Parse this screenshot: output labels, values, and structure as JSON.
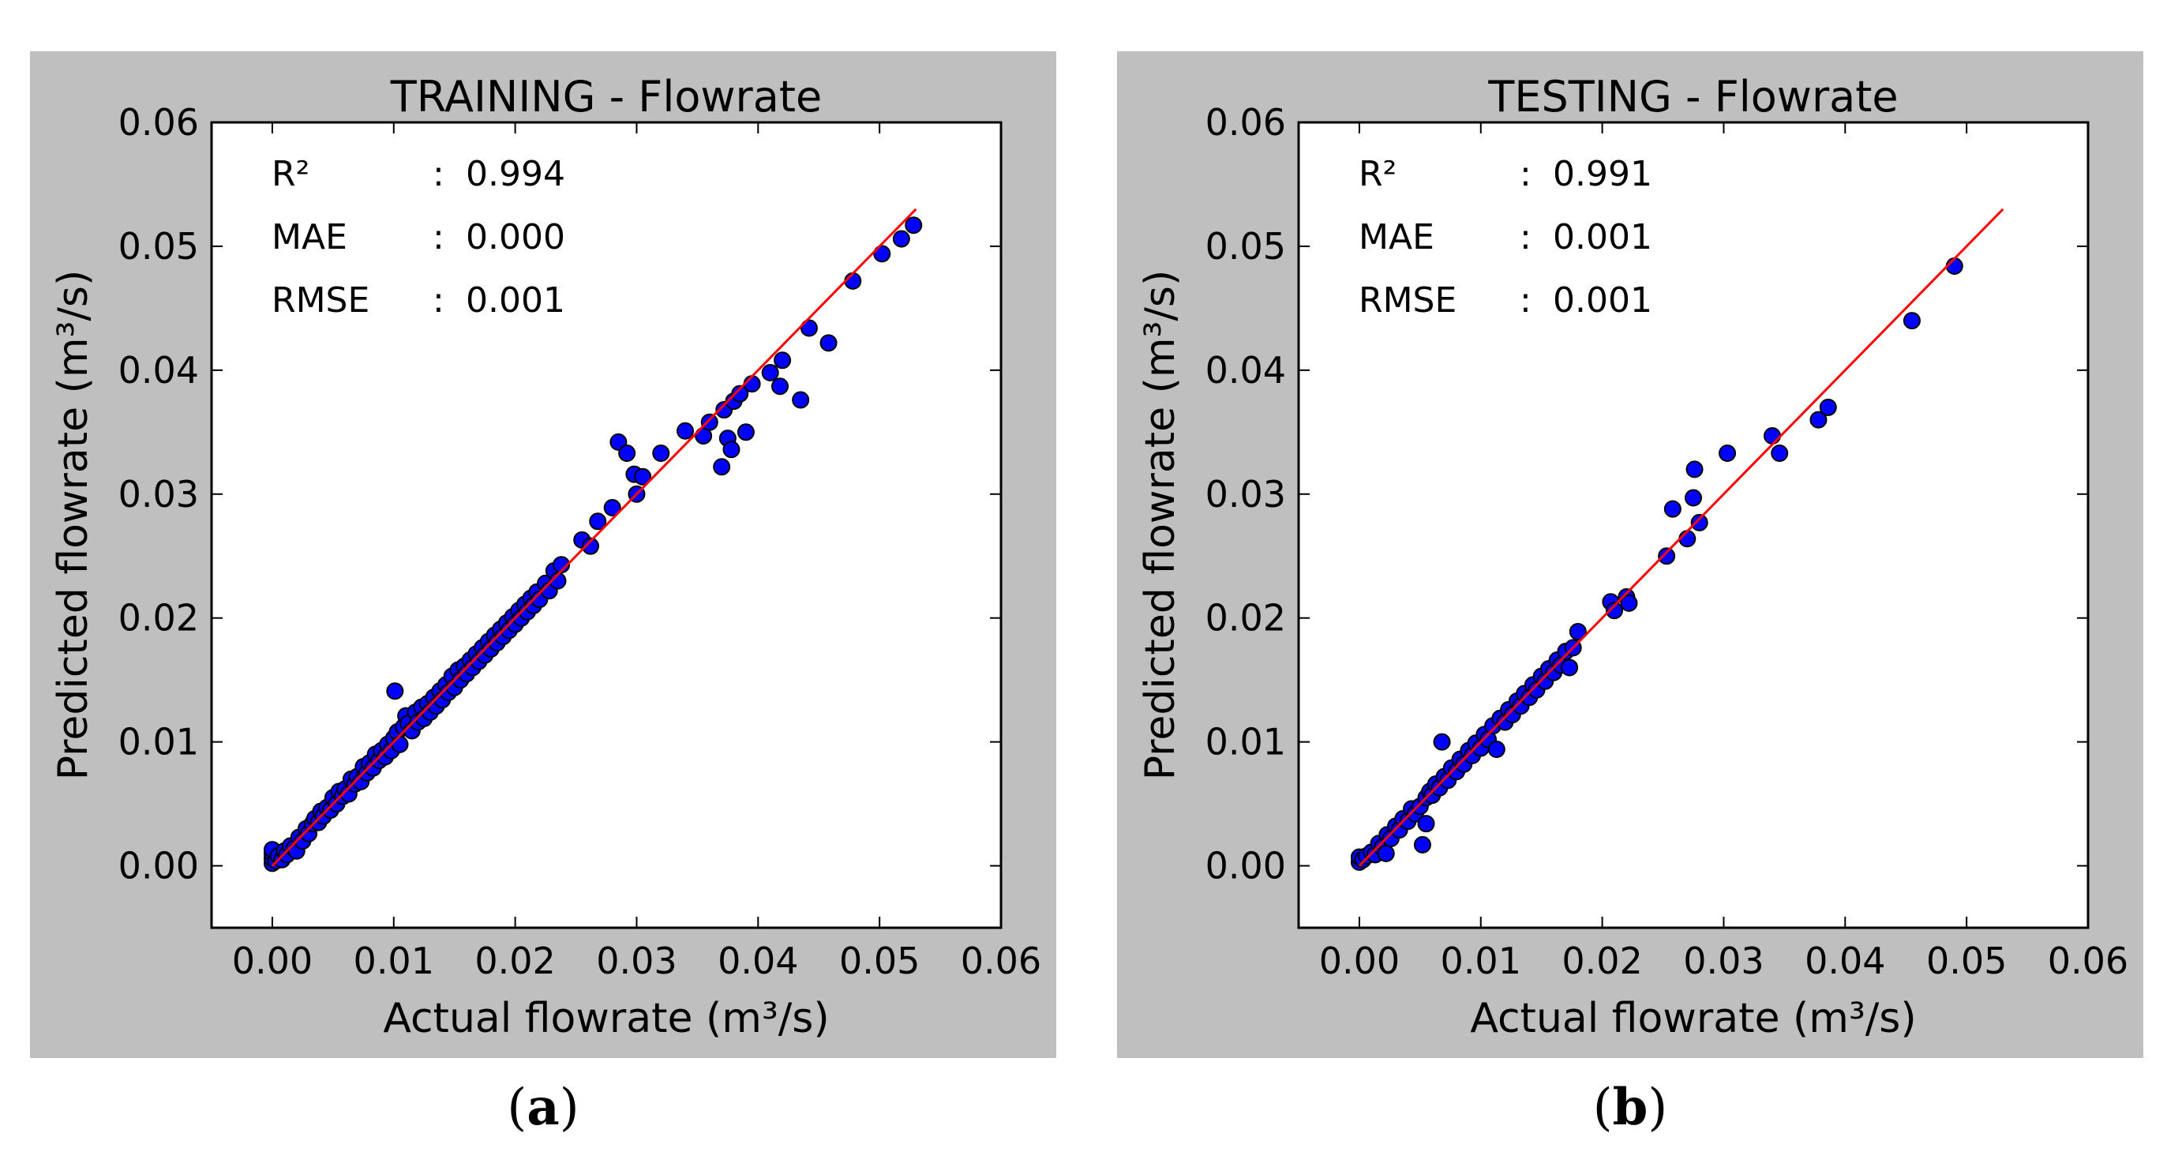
{
  "chart_data": [
    {
      "type": "scatter",
      "title": "TRAINING - Flowrate",
      "xlabel": "Actual flowrate (m³/s)",
      "ylabel": "Predicted flowrate (m³/s)",
      "xlim": [
        -0.005,
        0.06
      ],
      "ylim": [
        -0.005,
        0.06
      ],
      "xticks": [
        "0.00",
        "0.01",
        "0.02",
        "0.03",
        "0.04",
        "0.05",
        "0.06"
      ],
      "yticks": [
        "0.00",
        "0.01",
        "0.02",
        "0.03",
        "0.04",
        "0.05",
        "0.06"
      ],
      "tick_values": [
        0,
        0.01,
        0.02,
        0.03,
        0.04,
        0.05,
        0.06
      ],
      "grid": false,
      "point_color": "#0000ff",
      "line_color": "#ff0000",
      "reference_line": {
        "x": [
          0,
          0.053
        ],
        "y": [
          0,
          0.053
        ]
      },
      "stats": [
        {
          "label": "R²",
          "sep": ":",
          "value": "0.994"
        },
        {
          "label": "MAE",
          "sep": ":",
          "value": "0.000"
        },
        {
          "label": "RMSE",
          "sep": ":",
          "value": "0.001"
        }
      ],
      "series": [
        {
          "name": "training",
          "points": [
            [
              0.0,
              0.0002
            ],
            [
              0.0,
              0.0006
            ],
            [
              0.0,
              0.001
            ],
            [
              0.0,
              0.0013
            ],
            [
              0.0003,
              0.0004
            ],
            [
              0.0005,
              0.0008
            ],
            [
              0.0008,
              0.0005
            ],
            [
              0.001,
              0.0012
            ],
            [
              0.0012,
              0.0009
            ],
            [
              0.0015,
              0.0016
            ],
            [
              0.0018,
              0.0014
            ],
            [
              0.002,
              0.0012
            ],
            [
              0.0022,
              0.0023
            ],
            [
              0.0025,
              0.002
            ],
            [
              0.0028,
              0.003
            ],
            [
              0.003,
              0.0026
            ],
            [
              0.0033,
              0.0034
            ],
            [
              0.0035,
              0.0038
            ],
            [
              0.0038,
              0.0035
            ],
            [
              0.004,
              0.0044
            ],
            [
              0.0042,
              0.004
            ],
            [
              0.0045,
              0.0047
            ],
            [
              0.0048,
              0.0045
            ],
            [
              0.005,
              0.0055
            ],
            [
              0.0053,
              0.005
            ],
            [
              0.0055,
              0.006
            ],
            [
              0.0058,
              0.0056
            ],
            [
              0.006,
              0.0062
            ],
            [
              0.0063,
              0.0058
            ],
            [
              0.0065,
              0.007
            ],
            [
              0.0068,
              0.0066
            ],
            [
              0.007,
              0.0072
            ],
            [
              0.0073,
              0.0068
            ],
            [
              0.0075,
              0.008
            ],
            [
              0.0078,
              0.0075
            ],
            [
              0.008,
              0.0083
            ],
            [
              0.0083,
              0.0079
            ],
            [
              0.0085,
              0.009
            ],
            [
              0.0088,
              0.0085
            ],
            [
              0.009,
              0.0093
            ],
            [
              0.0093,
              0.0088
            ],
            [
              0.0095,
              0.0098
            ],
            [
              0.0098,
              0.0093
            ],
            [
              0.01,
              0.0103
            ],
            [
              0.0101,
              0.0141
            ],
            [
              0.0103,
              0.0108
            ],
            [
              0.0105,
              0.0098
            ],
            [
              0.0108,
              0.0112
            ],
            [
              0.011,
              0.0121
            ],
            [
              0.0112,
              0.0115
            ],
            [
              0.0115,
              0.0109
            ],
            [
              0.0118,
              0.0124
            ],
            [
              0.012,
              0.0116
            ],
            [
              0.0123,
              0.0128
            ],
            [
              0.0125,
              0.0119
            ],
            [
              0.0128,
              0.0131
            ],
            [
              0.013,
              0.0124
            ],
            [
              0.0133,
              0.0136
            ],
            [
              0.0135,
              0.0129
            ],
            [
              0.0138,
              0.0141
            ],
            [
              0.014,
              0.0134
            ],
            [
              0.0143,
              0.0146
            ],
            [
              0.0145,
              0.014
            ],
            [
              0.0148,
              0.0153
            ],
            [
              0.015,
              0.0144
            ],
            [
              0.0153,
              0.0158
            ],
            [
              0.0155,
              0.015
            ],
            [
              0.0158,
              0.0161
            ],
            [
              0.016,
              0.0155
            ],
            [
              0.0163,
              0.0166
            ],
            [
              0.0165,
              0.016
            ],
            [
              0.0168,
              0.0171
            ],
            [
              0.017,
              0.0165
            ],
            [
              0.0173,
              0.0176
            ],
            [
              0.0175,
              0.017
            ],
            [
              0.0178,
              0.0181
            ],
            [
              0.018,
              0.0175
            ],
            [
              0.0183,
              0.0186
            ],
            [
              0.0185,
              0.018
            ],
            [
              0.0188,
              0.0191
            ],
            [
              0.019,
              0.0185
            ],
            [
              0.0193,
              0.0196
            ],
            [
              0.0195,
              0.019
            ],
            [
              0.0198,
              0.0201
            ],
            [
              0.02,
              0.0195
            ],
            [
              0.0203,
              0.0206
            ],
            [
              0.0205,
              0.02
            ],
            [
              0.0208,
              0.0211
            ],
            [
              0.021,
              0.0205
            ],
            [
              0.0213,
              0.0216
            ],
            [
              0.0215,
              0.021
            ],
            [
              0.0218,
              0.0221
            ],
            [
              0.022,
              0.0215
            ],
            [
              0.0225,
              0.0228
            ],
            [
              0.0228,
              0.0222
            ],
            [
              0.0232,
              0.0238
            ],
            [
              0.0235,
              0.023
            ],
            [
              0.0238,
              0.0243
            ],
            [
              0.0255,
              0.0263
            ],
            [
              0.0262,
              0.0258
            ],
            [
              0.0268,
              0.0278
            ],
            [
              0.028,
              0.0289
            ],
            [
              0.0285,
              0.0342
            ],
            [
              0.0292,
              0.0333
            ],
            [
              0.0298,
              0.0316
            ],
            [
              0.03,
              0.03
            ],
            [
              0.0305,
              0.0314
            ],
            [
              0.032,
              0.0333
            ],
            [
              0.034,
              0.0351
            ],
            [
              0.0355,
              0.0347
            ],
            [
              0.036,
              0.0358
            ],
            [
              0.037,
              0.0322
            ],
            [
              0.0372,
              0.0368
            ],
            [
              0.0375,
              0.0345
            ],
            [
              0.0378,
              0.0336
            ],
            [
              0.038,
              0.0375
            ],
            [
              0.0385,
              0.0381
            ],
            [
              0.039,
              0.035
            ],
            [
              0.0395,
              0.0389
            ],
            [
              0.041,
              0.0398
            ],
            [
              0.0418,
              0.0387
            ],
            [
              0.042,
              0.0408
            ],
            [
              0.0435,
              0.0376
            ],
            [
              0.0442,
              0.0434
            ],
            [
              0.0458,
              0.0422
            ],
            [
              0.0478,
              0.0472
            ],
            [
              0.0502,
              0.0494
            ],
            [
              0.0518,
              0.0506
            ],
            [
              0.0528,
              0.0517
            ]
          ]
        }
      ]
    },
    {
      "type": "scatter",
      "title": "TESTING - Flowrate",
      "xlabel": "Actual flowrate (m³/s)",
      "ylabel": "Predicted flowrate (m³/s)",
      "xlim": [
        -0.005,
        0.06
      ],
      "ylim": [
        -0.005,
        0.06
      ],
      "xticks": [
        "0.00",
        "0.01",
        "0.02",
        "0.03",
        "0.04",
        "0.05",
        "0.06"
      ],
      "yticks": [
        "0.00",
        "0.01",
        "0.02",
        "0.03",
        "0.04",
        "0.05",
        "0.06"
      ],
      "tick_values": [
        0,
        0.01,
        0.02,
        0.03,
        0.04,
        0.05,
        0.06
      ],
      "grid": false,
      "point_color": "#0000ff",
      "line_color": "#ff0000",
      "reference_line": {
        "x": [
          0,
          0.053
        ],
        "y": [
          0,
          0.053
        ]
      },
      "stats": [
        {
          "label": "R²",
          "sep": ":",
          "value": "0.991"
        },
        {
          "label": "MAE",
          "sep": ":",
          "value": "0.001"
        },
        {
          "label": "RMSE",
          "sep": ":",
          "value": "0.001"
        }
      ],
      "series": [
        {
          "name": "testing",
          "points": [
            [
              0.0,
              0.0003
            ],
            [
              0.0,
              0.0007
            ],
            [
              0.0003,
              0.0005
            ],
            [
              0.0006,
              0.0008
            ],
            [
              0.001,
              0.0011
            ],
            [
              0.0013,
              0.0009
            ],
            [
              0.0016,
              0.0018
            ],
            [
              0.0019,
              0.0015
            ],
            [
              0.0022,
              0.001
            ],
            [
              0.0023,
              0.0025
            ],
            [
              0.0026,
              0.0022
            ],
            [
              0.003,
              0.0032
            ],
            [
              0.0033,
              0.0029
            ],
            [
              0.0036,
              0.0038
            ],
            [
              0.004,
              0.0036
            ],
            [
              0.0043,
              0.0046
            ],
            [
              0.0046,
              0.0042
            ],
            [
              0.005,
              0.0048
            ],
            [
              0.0052,
              0.0017
            ],
            [
              0.0055,
              0.0034
            ],
            [
              0.0055,
              0.0055
            ],
            [
              0.0058,
              0.006
            ],
            [
              0.006,
              0.0057
            ],
            [
              0.0063,
              0.0066
            ],
            [
              0.0066,
              0.0063
            ],
            [
              0.0068,
              0.01
            ],
            [
              0.007,
              0.0072
            ],
            [
              0.0073,
              0.0069
            ],
            [
              0.0076,
              0.0079
            ],
            [
              0.008,
              0.0076
            ],
            [
              0.0083,
              0.0086
            ],
            [
              0.0086,
              0.0082
            ],
            [
              0.009,
              0.0093
            ],
            [
              0.0093,
              0.0089
            ],
            [
              0.0096,
              0.0099
            ],
            [
              0.01,
              0.0095
            ],
            [
              0.0103,
              0.0106
            ],
            [
              0.0106,
              0.0102
            ],
            [
              0.011,
              0.0113
            ],
            [
              0.0113,
              0.0094
            ],
            [
              0.0116,
              0.0119
            ],
            [
              0.012,
              0.0116
            ],
            [
              0.0123,
              0.0126
            ],
            [
              0.0126,
              0.0122
            ],
            [
              0.013,
              0.0133
            ],
            [
              0.0133,
              0.0129
            ],
            [
              0.0136,
              0.0139
            ],
            [
              0.014,
              0.0136
            ],
            [
              0.0143,
              0.0146
            ],
            [
              0.0146,
              0.0142
            ],
            [
              0.015,
              0.0153
            ],
            [
              0.0153,
              0.0149
            ],
            [
              0.0156,
              0.0159
            ],
            [
              0.016,
              0.0156
            ],
            [
              0.0163,
              0.0166
            ],
            [
              0.0166,
              0.0162
            ],
            [
              0.017,
              0.0173
            ],
            [
              0.0173,
              0.016
            ],
            [
              0.0176,
              0.0176
            ],
            [
              0.018,
              0.0189
            ],
            [
              0.0207,
              0.0213
            ],
            [
              0.021,
              0.0206
            ],
            [
              0.022,
              0.0217
            ],
            [
              0.0222,
              0.0212
            ],
            [
              0.0253,
              0.025
            ],
            [
              0.0258,
              0.0288
            ],
            [
              0.027,
              0.0264
            ],
            [
              0.0275,
              0.0297
            ],
            [
              0.0276,
              0.032
            ],
            [
              0.028,
              0.0277
            ],
            [
              0.0303,
              0.0333
            ],
            [
              0.034,
              0.0347
            ],
            [
              0.0346,
              0.0333
            ],
            [
              0.0378,
              0.036
            ],
            [
              0.0386,
              0.037
            ],
            [
              0.0455,
              0.044
            ],
            [
              0.049,
              0.0484
            ]
          ]
        }
      ]
    }
  ],
  "captions": [
    {
      "open": "(",
      "label": "a",
      "close": ")"
    },
    {
      "open": "(",
      "label": "b",
      "close": ")"
    }
  ]
}
